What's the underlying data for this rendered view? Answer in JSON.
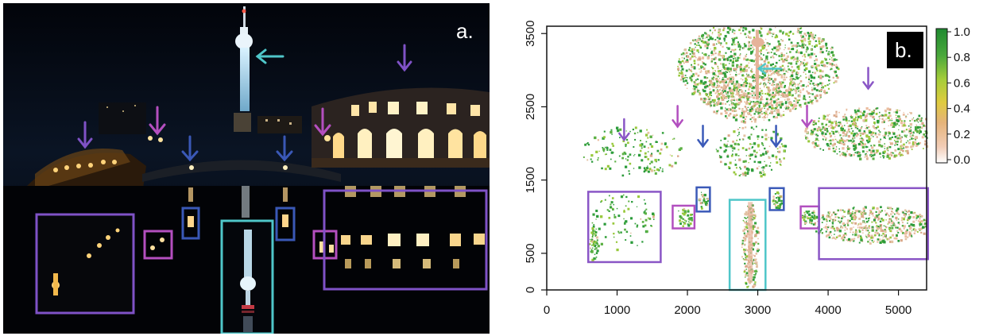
{
  "panels": {
    "a": {
      "letter": "a."
    },
    "b": {
      "letter": "b."
    }
  },
  "colors": {
    "cyan": "#4fc6c9",
    "blue": "#3b5ab8",
    "violet": "#8a56c6",
    "magenta": "#b24fbf",
    "green": "#2b9b3a",
    "salmon": "#e6b39a"
  },
  "photo_annotations": {
    "boxes": [
      "violet",
      "magenta",
      "blue",
      "cyan",
      "blue",
      "magenta",
      "violet"
    ],
    "arrows": [
      "cyan",
      "violet",
      "violet",
      "magenta",
      "blue",
      "blue",
      "magenta"
    ]
  },
  "chart_data": {
    "type": "heatmap",
    "xlim": [
      0,
      5400
    ],
    "ylim": [
      0,
      3600
    ],
    "x_ticks": [
      "0",
      "1000",
      "2000",
      "3000",
      "4000",
      "5000"
    ],
    "x_tick_values": [
      0,
      1000,
      2000,
      3000,
      4000,
      5000
    ],
    "y_ticks": [
      "0",
      "500",
      "1500",
      "2500",
      "3500"
    ],
    "y_tick_values": [
      0,
      500,
      1500,
      2500,
      3500
    ],
    "colorbar": {
      "ticks": [
        "1.0",
        "0.8",
        "0.6",
        "0.4",
        "0.2",
        "0.0"
      ],
      "tick_values": [
        1.0,
        0.8,
        0.6,
        0.4,
        0.2,
        0.0
      ],
      "stops": [
        "#ffffff",
        "#e8b294",
        "#e7c477",
        "#d8d03c",
        "#8ec83a",
        "#2f9b3a",
        "#1f8a30"
      ]
    },
    "boxes_data_units": [
      {
        "color": "violet",
        "x0": 590,
        "x1": 1620,
        "y0": 380,
        "y1": 1340
      },
      {
        "color": "magenta",
        "x0": 1790,
        "x1": 2100,
        "y0": 840,
        "y1": 1150
      },
      {
        "color": "blue",
        "x0": 2130,
        "x1": 2320,
        "y0": 1070,
        "y1": 1400
      },
      {
        "color": "cyan",
        "x0": 2600,
        "x1": 3110,
        "y0": 0,
        "y1": 1230
      },
      {
        "color": "blue",
        "x0": 3170,
        "x1": 3370,
        "y0": 1090,
        "y1": 1390
      },
      {
        "color": "magenta",
        "x0": 3610,
        "x1": 3870,
        "y0": 840,
        "y1": 1140
      },
      {
        "color": "violet",
        "x0": 3870,
        "x1": 5420,
        "y0": 420,
        "y1": 1390
      }
    ],
    "arrows_data_units": [
      {
        "color": "cyan",
        "x": 3150,
        "y": 3020,
        "dir": "left"
      },
      {
        "color": "violet",
        "x": 4570,
        "y": 2880,
        "dir": "down"
      },
      {
        "color": "violet",
        "x": 1100,
        "y": 2180,
        "dir": "down"
      },
      {
        "color": "magenta",
        "x": 1860,
        "y": 2360,
        "dir": "down"
      },
      {
        "color": "magenta",
        "x": 3700,
        "y": 2360,
        "dir": "down"
      },
      {
        "color": "blue",
        "x": 2220,
        "y": 2090,
        "dir": "down"
      },
      {
        "color": "blue",
        "x": 3260,
        "y": 2090,
        "dir": "down"
      }
    ]
  }
}
